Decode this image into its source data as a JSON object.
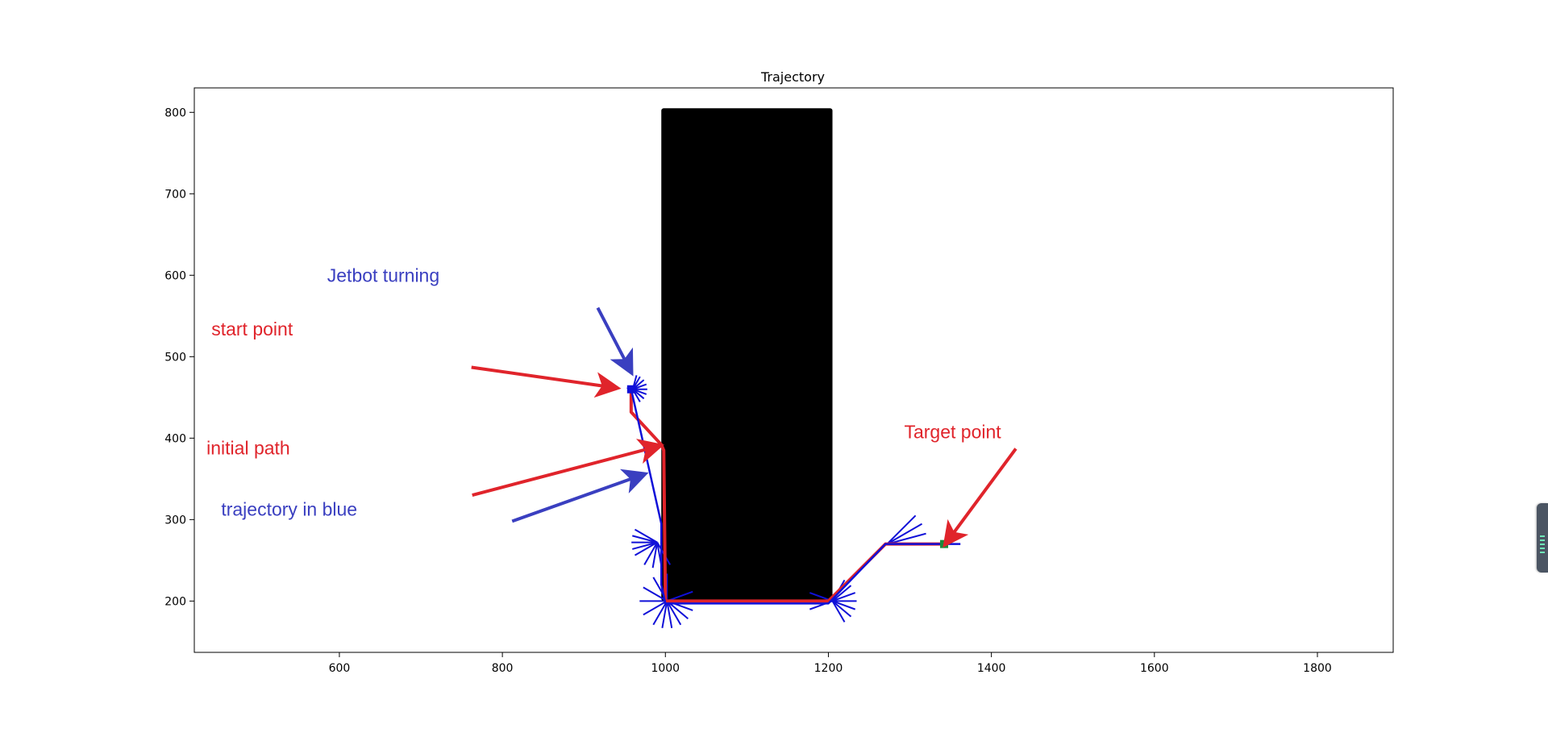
{
  "colors": {
    "path": "#e0242b",
    "trajectory": "#1010d8",
    "annot_red": "#e0242b",
    "annot_blue": "#3a3fc0",
    "obstacle": "#000000",
    "target_marker": "#1a8a3a"
  },
  "chart_data": {
    "type": "line",
    "title": "Trajectory",
    "xlabel": "",
    "ylabel": "",
    "xlim": [
      422,
      1893
    ],
    "ylim": [
      137,
      830
    ],
    "x_ticks": [
      600,
      800,
      1000,
      1200,
      1400,
      1600,
      1800
    ],
    "y_ticks": [
      200,
      300,
      400,
      500,
      600,
      700,
      800
    ],
    "grid": false,
    "legend": "none",
    "obstacle": {
      "x": [
        995,
        1205
      ],
      "y": [
        200,
        805
      ]
    },
    "series": [
      {
        "color": "#e0242b",
        "x": [
          958,
          958,
          995,
          998,
          1000,
          1200,
          1270,
          1342
        ],
        "y": [
          462,
          432,
          392,
          385,
          200,
          200,
          270,
          270
        ]
      },
      {
        "color": "#1010d8",
        "x": [
          953,
          958,
          995,
          995,
          1000,
          1200,
          1270,
          1362
        ],
        "y": [
          462,
          460,
          295,
          220,
          197,
          197,
          270,
          270
        ]
      }
    ],
    "heading_markers": [
      {
        "x": 960,
        "y": 460,
        "angles": [
          -60,
          -40,
          -20,
          0,
          20,
          40,
          60,
          75
        ],
        "len": 18
      },
      {
        "x": 990,
        "y": 272,
        "angles": [
          150,
          165,
          180,
          195,
          210,
          240,
          260,
          280,
          300
        ],
        "len": 32
      },
      {
        "x": 1002,
        "y": 200,
        "angles": [
          90,
          120,
          150,
          180,
          210,
          240,
          260,
          280,
          300,
          320,
          340,
          0,
          20
        ],
        "len": 34
      },
      {
        "x": 1205,
        "y": 200,
        "angles": [
          0,
          20,
          40,
          60,
          300,
          320,
          340,
          180,
          200,
          160
        ],
        "len": 30
      },
      {
        "x": 1272,
        "y": 270,
        "angles": [
          45,
          30,
          15,
          0
        ],
        "len": 50
      }
    ],
    "points": [
      {
        "name": "start",
        "x": 958,
        "y": 460,
        "shape": "square",
        "color": "#1010d8"
      },
      {
        "name": "target",
        "x": 1342,
        "y": 270,
        "shape": "square",
        "color": "#1a8a3a"
      }
    ],
    "annotations": [
      {
        "text": "Jetbot turning",
        "color": "#3a3fc0",
        "text_x": 585,
        "text_y": 592,
        "arrow": [
          [
            917,
            560
          ],
          [
            957,
            483
          ]
        ]
      },
      {
        "text": "start point",
        "color": "#e0242b",
        "text_x": 443,
        "text_y": 526,
        "arrow": [
          [
            762,
            487
          ],
          [
            938,
            462
          ]
        ]
      },
      {
        "text": "initial path",
        "color": "#e0242b",
        "text_x": 437,
        "text_y": 380,
        "arrow": [
          [
            763,
            330
          ],
          [
            991,
            390
          ]
        ]
      },
      {
        "text": "trajectory in blue",
        "color": "#3a3fc0",
        "text_x": 455,
        "text_y": 305,
        "arrow": [
          [
            812,
            298
          ],
          [
            972,
            355
          ]
        ]
      },
      {
        "text": "Target point",
        "color": "#e0242b",
        "text_x": 1293,
        "text_y": 400,
        "arrow": [
          [
            1430,
            387
          ],
          [
            1345,
            272
          ]
        ]
      }
    ]
  }
}
